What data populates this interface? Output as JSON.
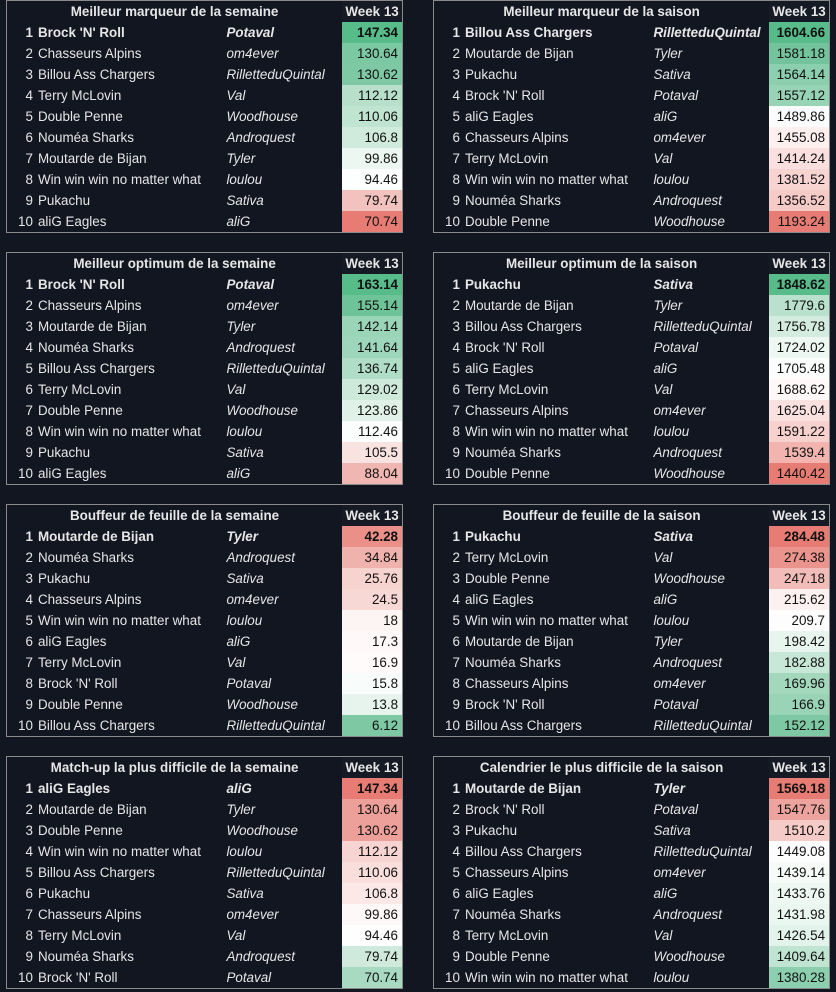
{
  "week_label": "Week 13",
  "panels": [
    {
      "title": "Meilleur marqueur de la semaine",
      "rows": [
        [
          "1",
          "Brock 'N' Roll",
          "Potaval",
          "147.34"
        ],
        [
          "2",
          "Chasseurs Alpins",
          "om4ever",
          "130.64"
        ],
        [
          "3",
          "Billou Ass Chargers",
          "RilletteduQuintal",
          "130.62"
        ],
        [
          "4",
          "Terry McLovin",
          "Val",
          "112.12"
        ],
        [
          "5",
          "Double Penne",
          "Woodhouse",
          "110.06"
        ],
        [
          "6",
          "Nouméa Sharks",
          "Androquest",
          "106.8"
        ],
        [
          "7",
          "Moutarde de Bijan",
          "Tyler",
          "99.86"
        ],
        [
          "8",
          "Win win win no matter what",
          "loulou",
          "94.46"
        ],
        [
          "9",
          "Pukachu",
          "Sativa",
          "79.74"
        ],
        [
          "10",
          "aliG Eagles",
          "aliG",
          "70.74"
        ]
      ],
      "colors": [
        "#57bb8a",
        "#7cc8a2",
        "#7ec9a4",
        "#b6e0ca",
        "#bfe4d0",
        "#d0ebdc",
        "#ecf7f1",
        "#fdfffe",
        "#f2c2be",
        "#e67c73"
      ]
    },
    {
      "title": "Meilleur marqueur de la saison",
      "rows": [
        [
          "1",
          "Billou Ass Chargers",
          "RilletteduQuintal",
          "1604.66"
        ],
        [
          "2",
          "Moutarde de Bijan",
          "Tyler",
          "1581.18"
        ],
        [
          "3",
          "Pukachu",
          "Sativa",
          "1564.14"
        ],
        [
          "4",
          "Brock 'N' Roll",
          "Potaval",
          "1557.12"
        ],
        [
          "5",
          "aliG Eagles",
          "aliG",
          "1489.86"
        ],
        [
          "6",
          "Chasseurs Alpins",
          "om4ever",
          "1455.08"
        ],
        [
          "7",
          "Terry McLovin",
          "Val",
          "1414.24"
        ],
        [
          "8",
          "Win win win no matter what",
          "loulou",
          "1381.52"
        ],
        [
          "9",
          "Nouméa Sharks",
          "Androquest",
          "1356.52"
        ],
        [
          "10",
          "Double Penne",
          "Woodhouse",
          "1193.24"
        ]
      ],
      "colors": [
        "#57bb8a",
        "#73c49c",
        "#8ccfae",
        "#97d3b5",
        "#fafdfb",
        "#fdf0ef",
        "#f9dfdd",
        "#f7d4d1",
        "#f5cbc8",
        "#e67c73"
      ]
    },
    {
      "title": "Meilleur optimum de la semaine",
      "rows": [
        [
          "1",
          "Brock 'N' Roll",
          "Potaval",
          "163.14"
        ],
        [
          "2",
          "Chasseurs Alpins",
          "om4ever",
          "155.14"
        ],
        [
          "3",
          "Moutarde de Bijan",
          "Tyler",
          "142.14"
        ],
        [
          "4",
          "Nouméa Sharks",
          "Androquest",
          "141.64"
        ],
        [
          "5",
          "Billou Ass Chargers",
          "RilletteduQuintal",
          "136.74"
        ],
        [
          "6",
          "Terry McLovin",
          "Val",
          "129.02"
        ],
        [
          "7",
          "Double Penne",
          "Woodhouse",
          "123.86"
        ],
        [
          "8",
          "Win win win no matter what",
          "loulou",
          "112.46"
        ],
        [
          "9",
          "Pukachu",
          "Sativa",
          "105.5"
        ],
        [
          "10",
          "aliG Eagles",
          "aliG",
          "88.04"
        ]
      ],
      "colors": [
        "#57bb8a",
        "#6fc399",
        "#9bd5b8",
        "#9dd6ba",
        "#b0ddc6",
        "#cde9da",
        "#e0f2e8",
        "#fbfefc",
        "#f8e3e1",
        "#f0b7b2"
      ]
    },
    {
      "title": "Meilleur optimum de la saison",
      "rows": [
        [
          "1",
          "Pukachu",
          "Sativa",
          "1848.62"
        ],
        [
          "2",
          "Moutarde de Bijan",
          "Tyler",
          "1779.6"
        ],
        [
          "3",
          "Billou Ass Chargers",
          "RilletteduQuintal",
          "1756.78"
        ],
        [
          "4",
          "Brock 'N' Roll",
          "Potaval",
          "1724.02"
        ],
        [
          "5",
          "aliG Eagles",
          "aliG",
          "1705.48"
        ],
        [
          "6",
          "Terry McLovin",
          "Val",
          "1688.62"
        ],
        [
          "7",
          "Chasseurs Alpins",
          "om4ever",
          "1625.04"
        ],
        [
          "8",
          "Win win win no matter what",
          "loulou",
          "1591.22"
        ],
        [
          "9",
          "Nouméa Sharks",
          "Androquest",
          "1539.4"
        ],
        [
          "10",
          "Double Penne",
          "Woodhouse",
          "1440.42"
        ]
      ],
      "colors": [
        "#57bb8a",
        "#b9e1cd",
        "#d3ecdf",
        "#eef8f3",
        "#fcfefd",
        "#fef9f8",
        "#f9e1df",
        "#f7d1ce",
        "#f1b4af",
        "#e67c73"
      ]
    },
    {
      "title": "Bouffeur de feuille de la semaine",
      "rows": [
        [
          "1",
          "Moutarde de Bijan",
          "Tyler",
          "42.28"
        ],
        [
          "2",
          "Nouméa Sharks",
          "Androquest",
          "34.84"
        ],
        [
          "3",
          "Pukachu",
          "Sativa",
          "25.76"
        ],
        [
          "4",
          "Chasseurs Alpins",
          "om4ever",
          "24.5"
        ],
        [
          "5",
          "Win win win no matter what",
          "loulou",
          "18"
        ],
        [
          "6",
          "aliG Eagles",
          "aliG",
          "17.3"
        ],
        [
          "7",
          "Terry McLovin",
          "Val",
          "16.9"
        ],
        [
          "8",
          "Brock 'N' Roll",
          "Potaval",
          "15.8"
        ],
        [
          "9",
          "Double Penne",
          "Woodhouse",
          "13.8"
        ],
        [
          "10",
          "Billou Ass Chargers",
          "RilletteduQuintal",
          "6.12"
        ]
      ],
      "colors": [
        "#ea9089",
        "#f0b2ad",
        "#f7d3d0",
        "#f8d8d5",
        "#fdf5f4",
        "#fef8f8",
        "#fefbfa",
        "#f8fcfa",
        "#e6f4ed",
        "#7ec9a4"
      ]
    },
    {
      "title": "Bouffeur de feuille de la saison",
      "rows": [
        [
          "1",
          "Pukachu",
          "Sativa",
          "284.48"
        ],
        [
          "2",
          "Terry McLovin",
          "Val",
          "274.38"
        ],
        [
          "3",
          "Double Penne",
          "Woodhouse",
          "247.18"
        ],
        [
          "4",
          "aliG Eagles",
          "aliG",
          "215.62"
        ],
        [
          "5",
          "Win win win no matter what",
          "loulou",
          "209.7"
        ],
        [
          "6",
          "Moutarde de Bijan",
          "Tyler",
          "198.42"
        ],
        [
          "7",
          "Nouméa Sharks",
          "Androquest",
          "182.88"
        ],
        [
          "8",
          "Chasseurs Alpins",
          "om4ever",
          "169.96"
        ],
        [
          "9",
          "Brock 'N' Roll",
          "Potaval",
          "166.9"
        ],
        [
          "10",
          "Billou Ass Chargers",
          "RilletteduQuintal",
          "152.12"
        ]
      ],
      "colors": [
        "#e67c73",
        "#ea948d",
        "#f2bdb9",
        "#fcf1f0",
        "#fefdfd",
        "#e8f5ee",
        "#c8e8d7",
        "#a3d8bd",
        "#9ad4b7",
        "#7ec9a4"
      ]
    },
    {
      "title": "Match-up la plus difficile de la semaine",
      "rows": [
        [
          "1",
          "aliG Eagles",
          "aliG",
          "147.34"
        ],
        [
          "2",
          "Moutarde de Bijan",
          "Tyler",
          "130.64"
        ],
        [
          "3",
          "Double Penne",
          "Woodhouse",
          "130.62"
        ],
        [
          "4",
          "Win win win no matter what",
          "loulou",
          "112.12"
        ],
        [
          "5",
          "Billou Ass Chargers",
          "RilletteduQuintal",
          "110.06"
        ],
        [
          "6",
          "Pukachu",
          "Sativa",
          "106.8"
        ],
        [
          "7",
          "Chasseurs Alpins",
          "om4ever",
          "99.86"
        ],
        [
          "8",
          "Terry McLovin",
          "Val",
          "94.46"
        ],
        [
          "9",
          "Nouméa Sharks",
          "Androquest",
          "79.74"
        ],
        [
          "10",
          "Brock 'N' Roll",
          "Potaval",
          "70.74"
        ]
      ],
      "colors": [
        "#e67c73",
        "#ed9f99",
        "#eda09a",
        "#f7d4d1",
        "#f9dedc",
        "#fbe8e7",
        "#fef9f8",
        "#fdfefd",
        "#cfeadc",
        "#a7dac0"
      ]
    },
    {
      "title": "Calendrier le plus difficile de la saison",
      "rows": [
        [
          "1",
          "Moutarde de Bijan",
          "Tyler",
          "1569.18"
        ],
        [
          "2",
          "Brock 'N' Roll",
          "Potaval",
          "1547.76"
        ],
        [
          "3",
          "Pukachu",
          "Sativa",
          "1510.2"
        ],
        [
          "4",
          "Billou Ass Chargers",
          "RilletteduQuintal",
          "1449.08"
        ],
        [
          "5",
          "Chasseurs Alpins",
          "om4ever",
          "1439.14"
        ],
        [
          "6",
          "aliG Eagles",
          "aliG",
          "1433.76"
        ],
        [
          "7",
          "Nouméa Sharks",
          "Androquest",
          "1431.98"
        ],
        [
          "8",
          "Terry McLovin",
          "Val",
          "1426.54"
        ],
        [
          "9",
          "Double Penne",
          "Woodhouse",
          "1409.64"
        ],
        [
          "10",
          "Win win win no matter what",
          "loulou",
          "1380.28"
        ]
      ],
      "colors": [
        "#e67c73",
        "#eea49e",
        "#f5cbc7",
        "#fefdfd",
        "#f6fbf8",
        "#eef8f3",
        "#eaf6f0",
        "#e1f3ea",
        "#c0e4d2",
        "#8ccfae"
      ]
    }
  ]
}
